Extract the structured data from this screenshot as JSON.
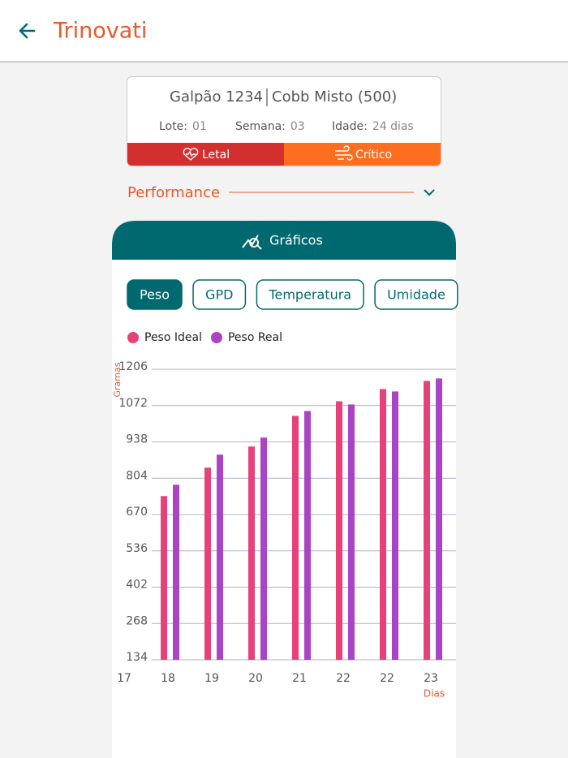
{
  "header": {
    "title": "Trinovati"
  },
  "card": {
    "galpao": "Galpão 1234",
    "linhagem": "Cobb Misto (500)",
    "fields": [
      {
        "label": "Lote:",
        "value": "01"
      },
      {
        "label": "Semana:",
        "value": "03"
      },
      {
        "label": "Idade:",
        "value": "24 dias"
      }
    ],
    "statuses": [
      "Letal",
      "Crítico"
    ]
  },
  "section": {
    "title": "Performance"
  },
  "modal": {
    "title": "Gráficos",
    "tabs": [
      "Peso",
      "GPD",
      "Temperatura",
      "Umidade"
    ],
    "active_tab": 0
  },
  "chart_data": {
    "type": "bar",
    "y_label": "Gramas",
    "x_label": "Dias",
    "categories": [
      "17",
      "18",
      "19",
      "20",
      "21",
      "22",
      "22",
      "23"
    ],
    "series": [
      {
        "name": "Peso Ideal",
        "color": "#e8407a",
        "values": [
          null,
          738,
          843,
          921,
          1034,
          1088,
          1133,
          1163
        ]
      },
      {
        "name": "Peso Real",
        "color": "#aa44c4",
        "values": [
          null,
          780,
          891,
          954,
          1052,
          1076,
          1124,
          1172
        ]
      }
    ],
    "ylim": [
      134,
      1206
    ],
    "yticks": [
      134,
      268,
      402,
      536,
      670,
      804,
      938,
      1072,
      1206
    ],
    "grid": true
  }
}
